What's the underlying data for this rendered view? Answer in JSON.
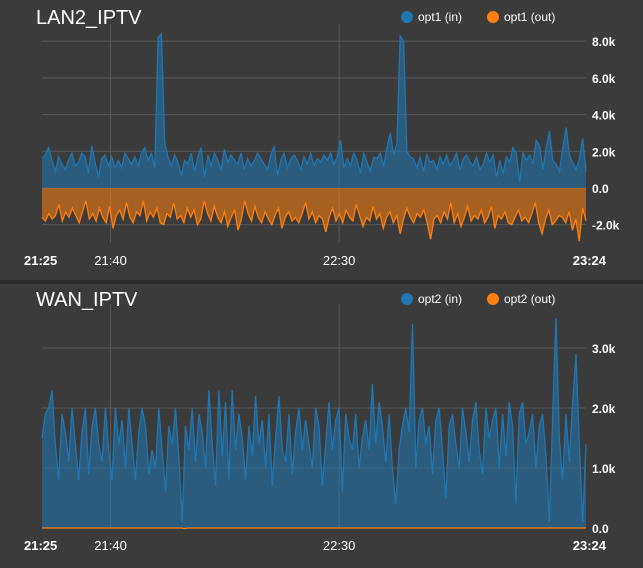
{
  "charts": [
    {
      "title": "LAN2_IPTV",
      "legend": [
        {
          "name": "opt1 (in)",
          "color": "#1f77b4"
        },
        {
          "name": "opt1 (out)",
          "color": "#ff7f0e"
        }
      ],
      "y_ticks": [
        "8.0k",
        "6.0k",
        "4.0k",
        "2.0k",
        "0.0",
        "-2.0k"
      ],
      "x_ticks": [
        {
          "label": "21:25",
          "bold": true
        },
        {
          "label": "21:40",
          "bold": false
        },
        {
          "label": "22:30",
          "bold": false
        },
        {
          "label": "23:24",
          "bold": true
        }
      ]
    },
    {
      "title": "WAN_IPTV",
      "legend": [
        {
          "name": "opt2 (in)",
          "color": "#1f77b4"
        },
        {
          "name": "opt2 (out)",
          "color": "#ff7f0e"
        }
      ],
      "y_ticks": [
        "3.0k",
        "2.0k",
        "1.0k",
        "0.0"
      ],
      "x_ticks": [
        {
          "label": "21:25",
          "bold": true
        },
        {
          "label": "21:40",
          "bold": false
        },
        {
          "label": "22:30",
          "bold": false
        },
        {
          "label": "23:24",
          "bold": true
        }
      ]
    }
  ],
  "chart_data": [
    {
      "type": "area",
      "title": "LAN2_IPTV",
      "x_range": [
        "21:25",
        "23:24"
      ],
      "ylim": [
        -3000,
        8500
      ],
      "grid": true,
      "legend_position": "top-right",
      "x_grid_times": [
        "21:40",
        "22:30"
      ],
      "series": [
        {
          "name": "opt1 (in)",
          "color": "#1f77b4",
          "values": [
            1600,
            1800,
            2200,
            1500,
            900,
            1700,
            1300,
            1000,
            1500,
            1900,
            1200,
            1400,
            1900,
            1700,
            800,
            2300,
            1400,
            600,
            1600,
            1800,
            1200,
            1700,
            1100,
            1500,
            1100,
            1900,
            1600,
            1300,
            1700,
            1200,
            1900,
            2200,
            1500,
            1900,
            1100,
            8200,
            8400,
            2500,
            1700,
            1200,
            1800,
            1400,
            700,
            1500,
            1300,
            1900,
            900,
            1700,
            2200,
            600,
            1800,
            1200,
            1900,
            1500,
            1000,
            2100,
            1400,
            1800,
            1500,
            1300,
            1900,
            1000,
            1600,
            1200,
            1500,
            1900,
            1600,
            1300,
            1000,
            1800,
            2300,
            700,
            1500,
            1900,
            1100,
            1600,
            1800,
            1500,
            1000,
            1700,
            1300,
            1900,
            1200,
            1600,
            1400,
            1800,
            1500,
            1900,
            1300,
            1700,
            2600,
            1100,
            1600,
            1200,
            1900,
            1500,
            800,
            1900,
            1400,
            900,
            1700,
            1600,
            1900,
            1200,
            2200,
            3000,
            1800,
            2400,
            8300,
            8000,
            2000,
            1700,
            1600,
            1100,
            1700,
            900,
            1800,
            1400,
            1500,
            1000,
            1700,
            1300,
            1800,
            1200,
            1500,
            1900,
            1000,
            1600,
            1800,
            1400,
            1200,
            1700,
            1000,
            1300,
            1900,
            1400,
            1800,
            600,
            1500,
            800,
            1700,
            1400,
            2200,
            1900,
            300,
            1900,
            1500,
            1800,
            1300,
            2600,
            2300,
            1000,
            2200,
            3100,
            1500,
            1300,
            900,
            2200,
            3300,
            1800,
            1400,
            1000,
            1600,
            2700,
            900
          ]
        },
        {
          "name": "opt1 (out)",
          "color": "#ff7f0e",
          "values": [
            -1600,
            -1800,
            -1400,
            -1700,
            -1500,
            -900,
            -1800,
            -1300,
            -1600,
            -1100,
            -1500,
            -1900,
            -1300,
            -700,
            -1700,
            -1400,
            -1800,
            -1100,
            -1600,
            -1900,
            -1000,
            -2200,
            -1500,
            -1200,
            -1700,
            -800,
            -1600,
            -1900,
            -1300,
            -1500,
            -700,
            -1800,
            -1300,
            -1600,
            -1100,
            -1900,
            -2000,
            -1400,
            -1600,
            -800,
            -1700,
            -1500,
            -1900,
            -1100,
            -1600,
            -1200,
            -2000,
            -1700,
            -700,
            -1400,
            -1800,
            -1000,
            -1600,
            -1900,
            -1300,
            -2100,
            -1600,
            -1200,
            -2300,
            -1700,
            -700,
            -1400,
            -1800,
            -1000,
            -1600,
            -1900,
            -1300,
            -1700,
            -2000,
            -1500,
            -1100,
            -2200,
            -1600,
            -1300,
            -1800,
            -1600,
            -1900,
            -1400,
            -800,
            -1700,
            -1300,
            -1900,
            -1500,
            -1700,
            -2400,
            -1600,
            -1100,
            -1800,
            -1400,
            -1900,
            -1200,
            -1600,
            -1800,
            -900,
            -1500,
            -2100,
            -1600,
            -1800,
            -1000,
            -1700,
            -1400,
            -2200,
            -1600,
            -1300,
            -1900,
            -1500,
            -2500,
            -1700,
            -1100,
            -1600,
            -1900,
            -1400,
            -1600,
            -1200,
            -1900,
            -2800,
            -1700,
            -1500,
            -1900,
            -1300,
            -1700,
            -800,
            -1900,
            -1400,
            -2100,
            -1600,
            -1000,
            -1800,
            -1500,
            -1700,
            -1200,
            -1900,
            -1600,
            -1000,
            -2200,
            -1500,
            -1700,
            -1300,
            -1900,
            -2000,
            -1600,
            -1200,
            -1800,
            -1600,
            -1900,
            -1400,
            -800,
            -1900,
            -2500,
            -1700,
            -1200,
            -2000,
            -1800,
            -1500,
            -1600,
            -1900,
            -1300,
            -2300,
            -1700,
            -2900,
            -1100,
            -1800
          ]
        }
      ]
    },
    {
      "type": "area",
      "title": "WAN_IPTV",
      "x_range": [
        "21:25",
        "23:24"
      ],
      "ylim": [
        0,
        3600
      ],
      "grid": true,
      "legend_position": "top-right",
      "x_grid_times": [
        "21:40",
        "22:30"
      ],
      "series": [
        {
          "name": "opt2 (in)",
          "color": "#1f77b4",
          "values": [
            1500,
            1900,
            2000,
            2300,
            1400,
            800,
            1900,
            1600,
            1100,
            2000,
            1400,
            800,
            1600,
            2000,
            900,
            1700,
            2000,
            1400,
            1100,
            2000,
            1300,
            800,
            2000,
            1400,
            1800,
            1000,
            2000,
            1400,
            800,
            1600,
            2000,
            1700,
            900,
            1300,
            1000,
            2000,
            1300,
            600,
            1700,
            1400,
            2000,
            1200,
            100,
            1700,
            1300,
            2000,
            1100,
            1900,
            1600,
            1000,
            2300,
            1400,
            700,
            2300,
            1200,
            2100,
            800,
            2300,
            1300,
            1900,
            1500,
            800,
            1700,
            1200,
            2200,
            1400,
            1800,
            1000,
            1900,
            700,
            1500,
            2200,
            1300,
            1100,
            1900,
            900,
            1600,
            2000,
            1300,
            1800,
            1400,
            1000,
            2000,
            1700,
            700,
            1400,
            2100,
            1300,
            1800,
            2000,
            600,
            1900,
            1500,
            1300,
            1900,
            1000,
            1500,
            1800,
            1300,
            2400,
            1400,
            2100,
            1700,
            1100,
            1900,
            1000,
            400,
            1300,
            1700,
            2000,
            1600,
            3400,
            1000,
            1800,
            2000,
            1400,
            1700,
            900,
            1800,
            2000,
            1300,
            500,
            1700,
            1900,
            1400,
            1000,
            2000,
            1600,
            1100,
            1800,
            2100,
            1300,
            900,
            2000,
            1500,
            1800,
            2000,
            1000,
            1900,
            1200,
            2100,
            1700,
            400,
            1900,
            2100,
            1400,
            1600,
            1900,
            1000,
            1700,
            1900,
            1200,
            100,
            1800,
            3500,
            1500,
            800,
            1900,
            1100,
            2100,
            2900,
            1400,
            100,
            1400
          ]
        },
        {
          "name": "opt2 (out)",
          "color": "#ff7f0e",
          "values": [
            0,
            0,
            0,
            0,
            0,
            0,
            0,
            0,
            0,
            0,
            0,
            0,
            0,
            0,
            0,
            0,
            0,
            0,
            0,
            0,
            0,
            0,
            0,
            0,
            0,
            0,
            0,
            0,
            0,
            0,
            0,
            0,
            0,
            0,
            0,
            0,
            0,
            0,
            0,
            0,
            0,
            0,
            -10,
            0,
            0,
            0,
            0,
            0,
            0,
            0,
            0,
            0,
            0,
            0,
            0,
            0,
            0,
            0,
            0,
            0,
            0,
            0,
            0,
            0,
            0,
            0,
            0,
            0,
            0,
            0,
            0,
            0,
            0,
            0,
            0,
            0,
            0,
            0,
            0,
            0,
            0,
            0,
            0,
            0,
            0,
            0,
            0,
            0,
            0,
            0,
            0,
            0,
            0,
            0,
            0,
            0,
            0,
            0,
            0,
            0,
            0,
            0,
            0,
            0,
            0,
            0,
            0,
            0,
            0,
            0,
            0,
            0,
            0,
            0,
            0,
            0,
            0,
            0,
            0,
            0,
            0,
            0,
            0,
            0,
            0,
            0,
            0,
            0,
            0,
            0,
            0,
            0,
            0,
            0,
            0,
            0,
            0,
            0,
            0,
            0,
            0,
            0,
            0,
            0,
            0,
            0,
            0,
            0,
            0,
            0,
            0,
            0,
            0,
            0,
            0,
            0,
            0,
            0,
            0,
            0,
            0
          ]
        }
      ]
    }
  ]
}
